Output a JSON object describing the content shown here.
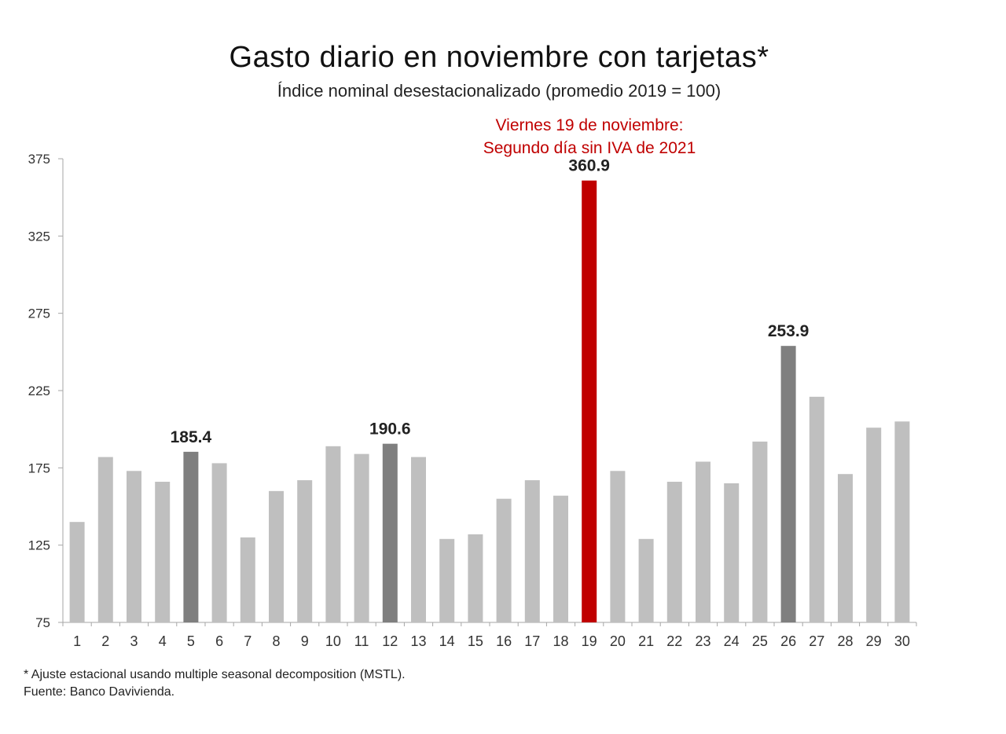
{
  "chart_data": {
    "type": "bar",
    "title": "Gasto diario en noviembre con tarjetas*",
    "subtitle": "Índice nominal desestacionalizado (promedio 2019 = 100)",
    "annotation": {
      "lines": [
        "Viernes 19 de noviembre:",
        "Segundo día sin IVA de 2021"
      ],
      "color": "#c00000",
      "category": "19"
    },
    "categories": [
      "1",
      "2",
      "3",
      "4",
      "5",
      "6",
      "7",
      "8",
      "9",
      "10",
      "11",
      "12",
      "13",
      "14",
      "15",
      "16",
      "17",
      "18",
      "19",
      "20",
      "21",
      "22",
      "23",
      "24",
      "25",
      "26",
      "27",
      "28",
      "29",
      "30"
    ],
    "values": [
      140,
      182,
      173,
      166,
      185.4,
      178,
      130,
      160,
      167,
      189,
      184,
      190.6,
      182,
      129,
      132,
      155,
      167,
      157,
      360.9,
      173,
      129,
      166,
      179,
      165,
      192,
      253.9,
      221,
      171,
      201,
      205
    ],
    "data_labels": [
      {
        "category": "5",
        "text": "185.4"
      },
      {
        "category": "12",
        "text": "190.6"
      },
      {
        "category": "19",
        "text": "360.9"
      },
      {
        "category": "26",
        "text": "253.9"
      }
    ],
    "highlight_dark": [
      "5",
      "12",
      "26"
    ],
    "highlight_red": [
      "19"
    ],
    "colors": {
      "default": "#bfbfbf",
      "dark": "#7f7f7f",
      "red": "#c00000"
    },
    "yticks": [
      75,
      125,
      175,
      225,
      275,
      325,
      375
    ],
    "ylim": [
      75,
      375
    ],
    "grid": false,
    "legend": "none",
    "xlabel": "",
    "ylabel": ""
  },
  "footnotes": {
    "note": "* Ajuste estacional usando multiple seasonal decomposition (MSTL).",
    "source": "Fuente: Banco Davivienda."
  }
}
